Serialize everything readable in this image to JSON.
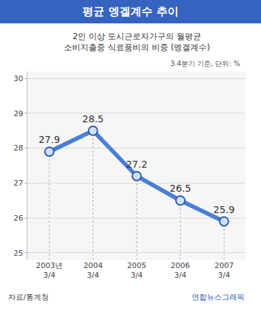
{
  "chart_data": {
    "type": "line",
    "title": "평균 엥겔계수 추이",
    "subtitle": "2인 이상 도시근로자가구의 월평균 소비지출중 식료품비의 비중 (엥겔계수)",
    "note": "3.4분기 기준, 단위: %",
    "source": "자료/통계청",
    "credit": "연합뉴스그래픽",
    "categories": [
      "2003년 3/4",
      "2004 3/4",
      "2005 3/4",
      "2006 3/4",
      "2007 3/4"
    ],
    "values": [
      27.9,
      28.5,
      27.2,
      26.5,
      25.9
    ],
    "color": "#4a7fd6",
    "marker": "circle",
    "data_labels": true,
    "ylim": [
      24.8,
      30.2
    ],
    "yticks": [
      25,
      26,
      27,
      28,
      29,
      30
    ],
    "grid": true
  }
}
